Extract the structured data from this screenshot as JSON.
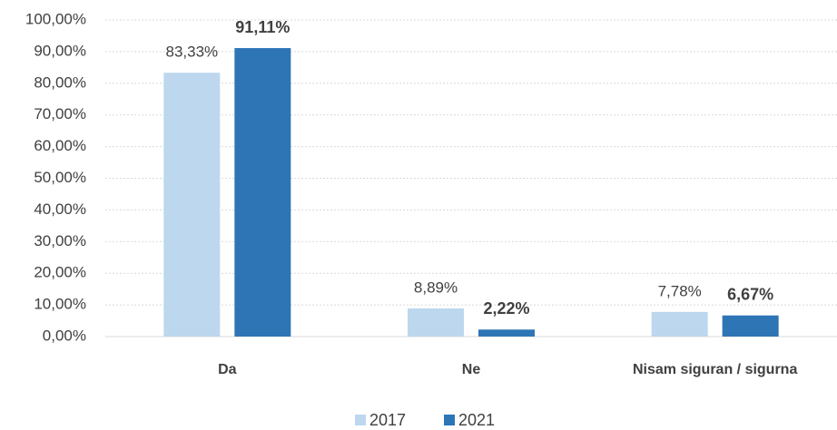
{
  "chart_data": {
    "type": "bar",
    "categories": [
      "Da",
      "Ne",
      "Nisam siguran / sigurna"
    ],
    "series": [
      {
        "name": "2017",
        "color": "#bdd7ee",
        "values": [
          83.33,
          8.89,
          7.78
        ],
        "value_labels": [
          "83,33%",
          "8,89%",
          "7,78%"
        ]
      },
      {
        "name": "2021",
        "color": "#2e75b6",
        "values": [
          91.11,
          2.22,
          6.67
        ],
        "value_labels": [
          "91,11%",
          "2,22%",
          "6,67%"
        ]
      }
    ],
    "ylim": [
      0,
      100
    ],
    "yticks": [
      {
        "value": 0,
        "label": "0,00%"
      },
      {
        "value": 10,
        "label": "10,00%"
      },
      {
        "value": 20,
        "label": "20,00%"
      },
      {
        "value": 30,
        "label": "30,00%"
      },
      {
        "value": 40,
        "label": "40,00%"
      },
      {
        "value": 50,
        "label": "50,00%"
      },
      {
        "value": 60,
        "label": "60,00%"
      },
      {
        "value": 70,
        "label": "70,00%"
      },
      {
        "value": 80,
        "label": "80,00%"
      },
      {
        "value": 90,
        "label": "90,00%"
      },
      {
        "value": 100,
        "label": "100,00%"
      }
    ],
    "grid": true,
    "legend": "bottom"
  }
}
